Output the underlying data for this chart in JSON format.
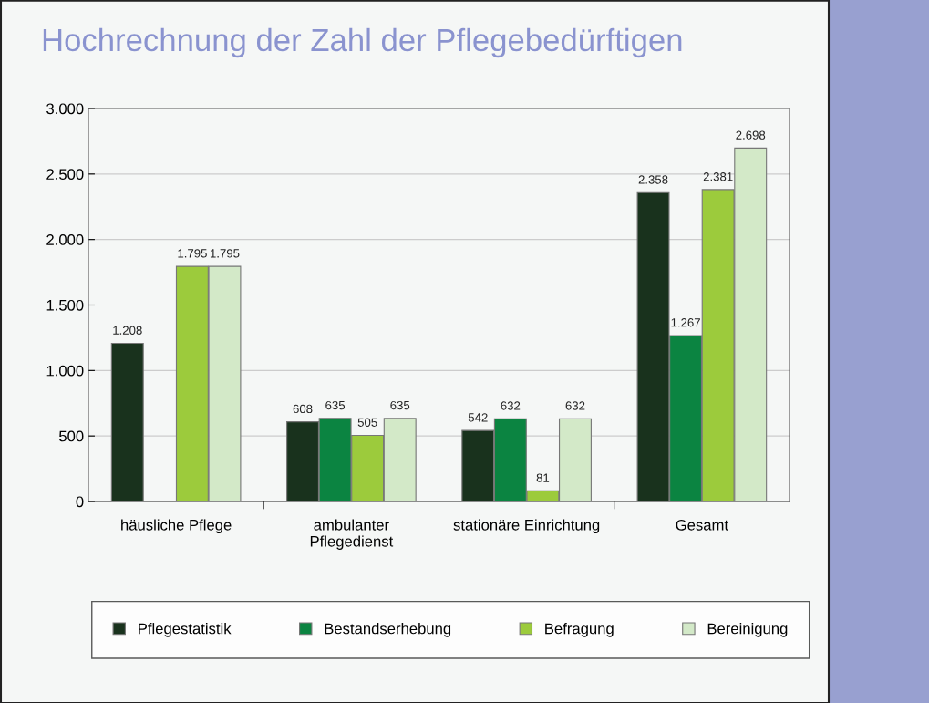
{
  "chart_data": {
    "type": "bar",
    "title": "Hochrechnung der Zahl der Pflegebedürftigen",
    "categories": [
      "häusliche Pflege",
      "ambulanter\nPflegedienst",
      "stationäre Einrichtung",
      "Gesamt"
    ],
    "series": [
      {
        "name": "Pflegestatistik",
        "color": "#19321d",
        "values": [
          1208,
          608,
          542,
          2358
        ],
        "value_labels": [
          "1.208",
          "608",
          "542",
          "2.358"
        ]
      },
      {
        "name": "Bestandserhebung",
        "color": "#0b8441",
        "values": [
          null,
          635,
          632,
          1267
        ],
        "value_labels": [
          null,
          "635",
          "632",
          "1.267"
        ]
      },
      {
        "name": "Befragung",
        "color": "#9ccb3c",
        "values": [
          1795,
          505,
          81,
          2381
        ],
        "value_labels": [
          "1.795",
          "505",
          "81",
          "2.381"
        ]
      },
      {
        "name": "Bereinigung",
        "color": "#d3e9c8",
        "values": [
          1795,
          635,
          632,
          2698
        ],
        "value_labels": [
          "1.795",
          "635",
          "632",
          "2.698"
        ]
      }
    ],
    "ylim": [
      0,
      3000
    ],
    "yticks": [
      {
        "value": 0,
        "label": "0"
      },
      {
        "value": 500,
        "label": "500"
      },
      {
        "value": 1000,
        "label": "1.000"
      },
      {
        "value": 1500,
        "label": "1.500"
      },
      {
        "value": 2000,
        "label": "2.000"
      },
      {
        "value": 2500,
        "label": "2.500"
      },
      {
        "value": 3000,
        "label": "3.000"
      }
    ],
    "grid": "y",
    "legend": "bottom"
  }
}
